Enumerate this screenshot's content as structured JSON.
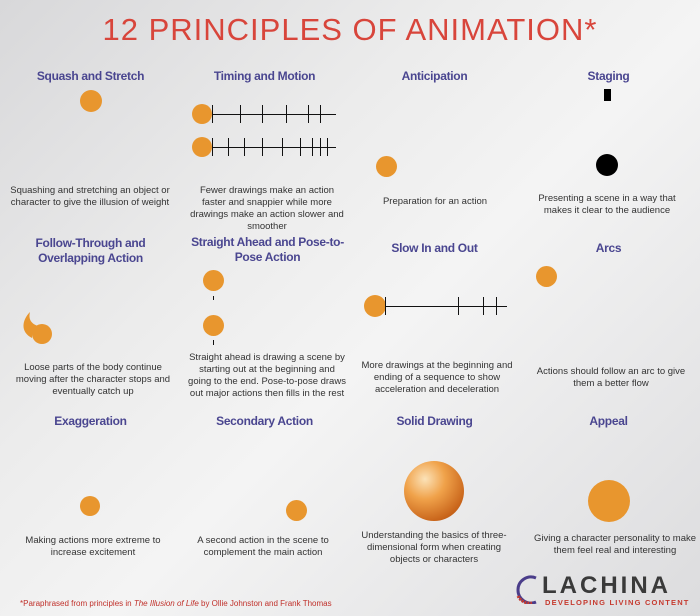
{
  "title": "12 PRINCIPLES OF ANIMATION*",
  "principles": [
    {
      "name": "Squash and Stretch",
      "description": "Squashing and stretching an object or character to give the illusion of weight"
    },
    {
      "name": "Timing and Motion",
      "description": "Fewer drawings make an action faster and snappier while more drawings make an action slower and smoother"
    },
    {
      "name": "Anticipation",
      "description": "Preparation for an action"
    },
    {
      "name": "Staging",
      "description": "Presenting a scene in a way that makes it clear to the audience"
    },
    {
      "name": "Follow-Through and Overlapping Action",
      "description": "Loose parts of the body continue moving after the character stops and eventually catch up"
    },
    {
      "name": "Straight Ahead and Pose-to-Pose Action",
      "description": "Straight ahead is drawing a scene by starting out at the beginning and going to the end. Pose-to-pose draws out major actions then fills in the rest"
    },
    {
      "name": "Slow In and Out",
      "description": "More drawings at the beginning and ending of a sequence to show acceleration and deceleration"
    },
    {
      "name": "Arcs",
      "description": "Actions should follow an arc to give them a better flow"
    },
    {
      "name": "Exaggeration",
      "description": "Making actions more extreme to increase excitement"
    },
    {
      "name": "Secondary Action",
      "description": "A second action in the scene to complement the main action"
    },
    {
      "name": "Solid Drawing",
      "description": "Understanding the basics of three-dimensional form when creating objects or characters"
    },
    {
      "name": "Appeal",
      "description": "Giving a character personality to make them feel real and interesting"
    }
  ],
  "footnote": {
    "prefix": "*Paraphrased from principles in ",
    "book": "The Illusion of Life",
    "suffix": " by Ollie Johnston and Frank Thomas"
  },
  "logo": {
    "name": "LACHINA",
    "tagline": "DEVELOPING LIVING CONTENT"
  },
  "colors": {
    "title": "#d8453b",
    "heading": "#4a4690",
    "ball": "#e8962e"
  }
}
